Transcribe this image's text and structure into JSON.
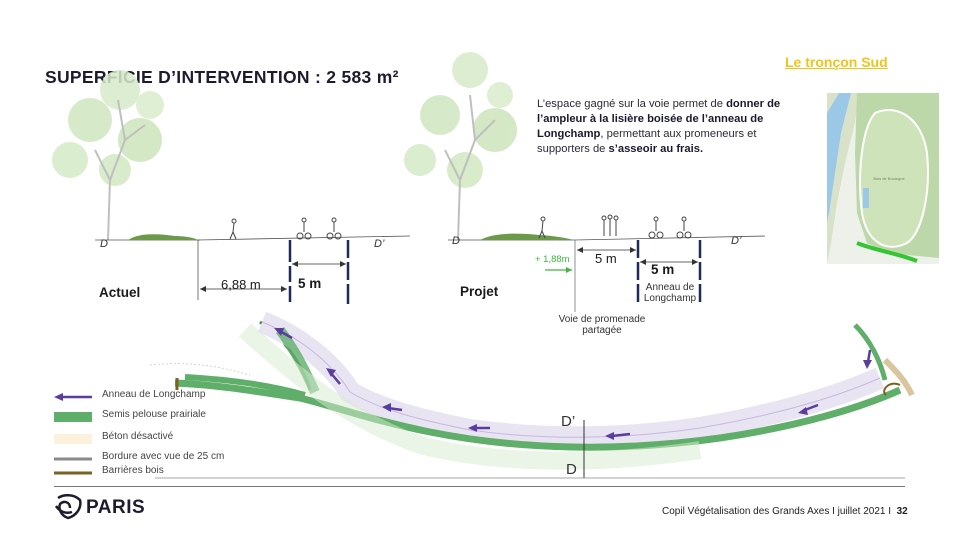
{
  "title": "SUPERFICIE D’INTERVENTION :  2 583 m²",
  "section_link": "Le tronçon Sud",
  "description": {
    "p1": "L’espace gagné sur la voie permet de ",
    "b1": "donner de l’ampleur à la lisière boisée de l’anneau de Longchamp",
    "p2": ", permettant aux promeneurs et supporters de ",
    "b2": "s’asseoir au frais."
  },
  "sections": {
    "actuel": {
      "label": "Actuel",
      "left_marker": "D",
      "right_marker": "D’",
      "width_a": "6,88  m",
      "width_b": "5 m"
    },
    "projet": {
      "label": "Projet",
      "left_marker": "D",
      "right_marker": "D’",
      "gain": "+ 1,88m",
      "width_a": "5  m",
      "width_b": "5 m",
      "anneau_label": "Anneau de\nLongchamp",
      "voie_label": "Voie de promenade\npartagée"
    }
  },
  "plan": {
    "marker_top": "D’",
    "marker_bottom": "D"
  },
  "legend": [
    {
      "label": "Anneau de Longchamp",
      "icon": "arrow",
      "color": "#5b3d9e"
    },
    {
      "label": "Semis pelouse prairiale",
      "icon": "swatch",
      "color": "#5fae6a"
    },
    {
      "label": "Béton désactivé",
      "icon": "swatch",
      "color": "#fbf1dc"
    },
    {
      "label": "Bordure avec vue de 25 cm",
      "icon": "line",
      "color": "#8a8a8a"
    },
    {
      "label": "Barrières bois",
      "icon": "line",
      "color": "#7a6220"
    }
  ],
  "minimap_label": "Bois de Boulogne",
  "footer": {
    "logo_text": "PARIS",
    "text": "Copil Végétalisation des Grands Axes I juillet 2021 I",
    "page": "32"
  },
  "colors": {
    "title": "#1c1c2e",
    "section_link": "#f0c419",
    "arrow": "#5b3d9e",
    "grass": "#5fae6a",
    "gain": "#3fb63f",
    "road": "#1c2b5a"
  }
}
